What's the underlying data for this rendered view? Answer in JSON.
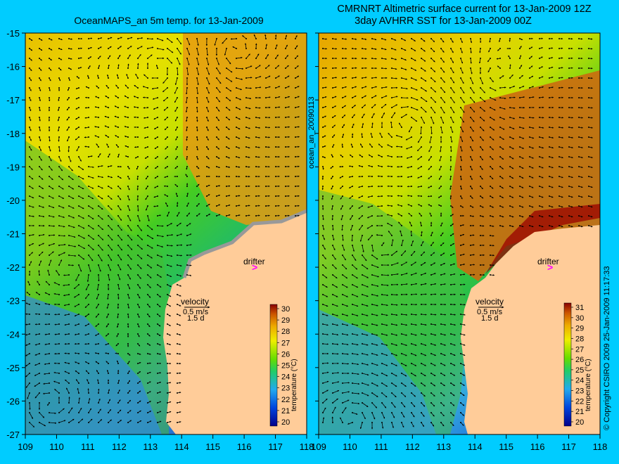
{
  "titles": {
    "left": "OceanMAPS_an 5m temp. for 13-Jan-2009",
    "right_line1": "CMRNRT Altimetric surface current for 13-Jan-2009 12Z",
    "right_line2": "3day AVHRR SST for 13-Jan-2009 00Z"
  },
  "side_text": {
    "middle": "ocean_an_20090113",
    "right": "© Copyright CSIRO 2009   25-Jan-2009 11:17:33"
  },
  "axes": {
    "lon_ticks": [
      "109",
      "110",
      "111",
      "112",
      "113",
      "114",
      "115",
      "116",
      "117",
      "118"
    ],
    "lat_ticks": [
      "-15",
      "-16",
      "-17",
      "-18",
      "-19",
      "-20",
      "-21",
      "-22",
      "-23",
      "-24",
      "-25",
      "-26",
      "-27"
    ]
  },
  "panels": [
    {
      "id": "ocean-maps",
      "drifter_label": "drifter",
      "velocity_label": "velocity",
      "velocity_value": "0.5 m/s",
      "velocity_time": "1.5 d",
      "colorbar_title": "temperature (°C)",
      "colorbar_ticks": [
        "30",
        "29",
        "28",
        "27",
        "26",
        "25",
        "24",
        "23",
        "22",
        "21",
        "20"
      ]
    },
    {
      "id": "avhrr-sst",
      "drifter_label": "drifter",
      "velocity_label": "velocity",
      "velocity_value": "0.5 m/s",
      "velocity_time": "1.5 d",
      "colorbar_title": "temperature (°C)",
      "colorbar_ticks": [
        "31",
        "30",
        "29",
        "28",
        "27",
        "26",
        "25",
        "24",
        "23",
        "22",
        "21",
        "20"
      ]
    }
  ],
  "colors": {
    "background": "#00ccff",
    "land": "#ffcc99",
    "drifter": "#ff00ff",
    "coastline_contour": "#66dddd"
  }
}
